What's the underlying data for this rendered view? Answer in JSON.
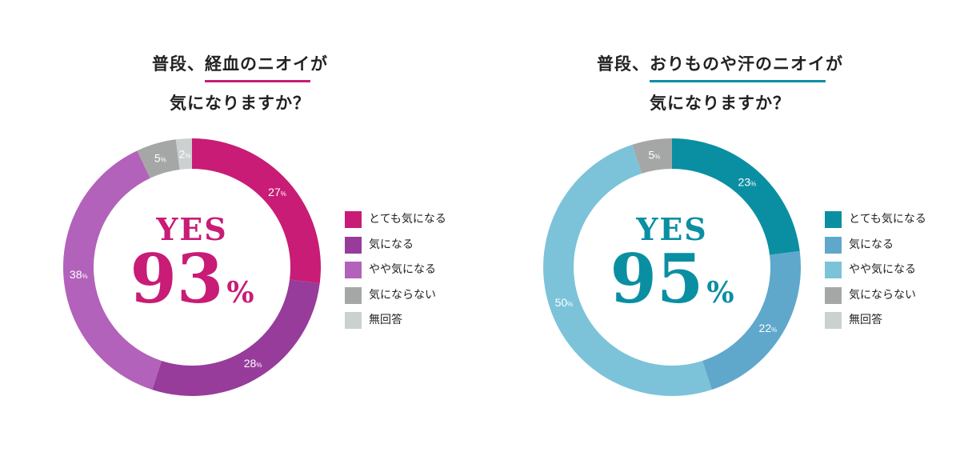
{
  "chart_data": [
    {
      "type": "donut",
      "title": {
        "prefix": "普段、",
        "highlight": "経血のニオイ",
        "suffix": "が",
        "line2": "気になりますか？"
      },
      "center": {
        "label": "YES",
        "value": "93",
        "unit": "%"
      },
      "categories": [
        "とても気になる",
        "気になる",
        "やや気になる",
        "気にならない",
        "無回答"
      ],
      "values": [
        27,
        28,
        38,
        5,
        2
      ],
      "data_labels": [
        "27",
        "28",
        "38",
        "5",
        "2"
      ],
      "percent_sign": "%",
      "colors": [
        "#c81c76",
        "#973c9b",
        "#b262ba",
        "#a5a7a7",
        "#cbd0d1"
      ],
      "label_colors": [
        "#ffffff",
        "#ffffff",
        "#ffffff",
        "#ffffff",
        "#ffffff"
      ],
      "accent": "#c81c76",
      "legend_position": "right"
    },
    {
      "type": "donut",
      "title": {
        "prefix": "普段、",
        "highlight": "おりものや汗のニオイ",
        "suffix": "が",
        "line2": "気になりますか？"
      },
      "center": {
        "label": "YES",
        "value": "95",
        "unit": "%"
      },
      "categories": [
        "とても気になる",
        "気になる",
        "やや気になる",
        "気にならない",
        "無回答"
      ],
      "values": [
        23,
        22,
        50,
        5,
        0
      ],
      "data_labels": [
        "23",
        "22",
        "50",
        "5",
        ""
      ],
      "percent_sign": "%",
      "colors": [
        "#0a8fa2",
        "#5fa8cc",
        "#7cc3da",
        "#a5a7a7",
        "#cbd0d1"
      ],
      "label_colors": [
        "#ffffff",
        "#ffffff",
        "#ffffff",
        "#ffffff",
        "#ffffff"
      ],
      "accent": "#0a8fa2",
      "legend_position": "right"
    }
  ]
}
